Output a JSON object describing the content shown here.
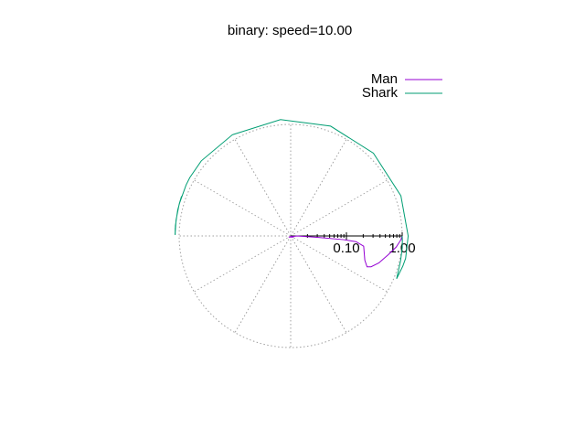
{
  "chart_data": {
    "type": "line",
    "subtype": "polar",
    "title": "binary: speed=10.00",
    "radial_axis": {
      "scale": "log",
      "range": [
        0.01,
        1.0
      ],
      "tick_labels": [
        "0.10",
        "1.00"
      ],
      "tick_values": [
        0.1,
        1.0
      ]
    },
    "angular_grid_step_deg": 30,
    "grid": true,
    "legend_position": "top-right",
    "series": [
      {
        "name": "Man",
        "color": "#9400d3",
        "points": [
          {
            "theta_deg": 0,
            "r": 0.01
          },
          {
            "theta_deg": -30,
            "r": 0.011
          },
          {
            "theta_deg": -150,
            "r": 0.011
          },
          {
            "theta_deg": 0,
            "r": 0.013
          },
          {
            "theta_deg": -3,
            "r": 0.03
          },
          {
            "theta_deg": -4,
            "r": 0.09
          },
          {
            "theta_deg": -5,
            "r": 0.15
          },
          {
            "theta_deg": -8,
            "r": 0.21
          },
          {
            "theta_deg": -18,
            "r": 0.25
          },
          {
            "theta_deg": -22,
            "r": 0.3
          },
          {
            "theta_deg": -21,
            "r": 0.35
          },
          {
            "theta_deg": -17,
            "r": 0.45
          },
          {
            "theta_deg": -11,
            "r": 0.6
          },
          {
            "theta_deg": -6,
            "r": 0.8
          },
          {
            "theta_deg": -2,
            "r": 0.95
          },
          {
            "theta_deg": 0,
            "r": 1.0
          }
        ]
      },
      {
        "name": "Shark",
        "color": "#009e73",
        "points": [
          {
            "theta_deg": 0,
            "r": 1.0
          },
          {
            "theta_deg": -2,
            "r": 1.01
          },
          {
            "theta_deg": -6,
            "r": 1.03
          },
          {
            "theta_deg": -13,
            "r": 1.05
          },
          {
            "theta_deg": -22,
            "r": 1.12
          },
          {
            "theta_deg": -15,
            "r": 1.21
          },
          {
            "theta_deg": -11,
            "r": 1.26
          },
          {
            "theta_deg": 0,
            "r": 1.28
          },
          {
            "theta_deg": 20,
            "r": 1.27
          },
          {
            "theta_deg": 45,
            "r": 1.255
          },
          {
            "theta_deg": 70,
            "r": 1.245
          },
          {
            "theta_deg": 95,
            "r": 1.24
          },
          {
            "theta_deg": 120,
            "r": 1.24
          },
          {
            "theta_deg": 140,
            "r": 1.24
          },
          {
            "theta_deg": 150,
            "r": 1.23
          },
          {
            "theta_deg": 154,
            "r": 1.22
          },
          {
            "theta_deg": 164,
            "r": 1.2
          },
          {
            "theta_deg": 172,
            "r": 1.19
          },
          {
            "theta_deg": 179,
            "r": 1.185
          },
          {
            "theta_deg": 179.5,
            "r": 1.178
          },
          {
            "theta_deg": 175,
            "r": 1.19
          },
          {
            "theta_deg": 167,
            "r": 1.2
          },
          {
            "theta_deg": 160,
            "r": 1.21
          },
          {
            "theta_deg": 164,
            "r": 1.2
          },
          {
            "theta_deg": 172,
            "r": 1.19
          },
          {
            "theta_deg": 179,
            "r": 1.18
          },
          {
            "theta_deg": 176,
            "r": 1.19
          }
        ]
      }
    ]
  }
}
